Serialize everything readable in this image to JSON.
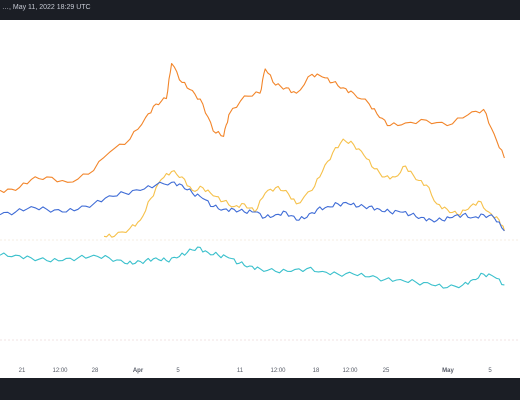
{
  "header": {
    "title": "…, May 11, 2022 18:29 UTC"
  },
  "chart_data": {
    "type": "line",
    "title": "",
    "xlabel": "",
    "ylabel": "",
    "x_ticks": [
      "21",
      "12:00",
      "28",
      "Apr",
      "5",
      "11",
      "12:00",
      "18",
      "12:00",
      "25",
      "May",
      "5"
    ],
    "ylim": [
      0,
      100
    ],
    "grid": false,
    "series": [
      {
        "color": "#f2852a",
        "points": [
          [
            0,
            48
          ],
          [
            3,
            48
          ],
          [
            6,
            52
          ],
          [
            9,
            53
          ],
          [
            13,
            51
          ],
          [
            17,
            54
          ],
          [
            21,
            62
          ],
          [
            25,
            67
          ],
          [
            28,
            75
          ],
          [
            30,
            80
          ],
          [
            32,
            82
          ],
          [
            33,
            95
          ],
          [
            35,
            88
          ],
          [
            37,
            85
          ],
          [
            39,
            80
          ],
          [
            41,
            70
          ],
          [
            43,
            68
          ],
          [
            44,
            76
          ],
          [
            47,
            83
          ],
          [
            50,
            84
          ],
          [
            51,
            93
          ],
          [
            53,
            87
          ],
          [
            55,
            86
          ],
          [
            57,
            84
          ],
          [
            60,
            91
          ],
          [
            62,
            90
          ],
          [
            64,
            88
          ],
          [
            66,
            86
          ],
          [
            68,
            84
          ],
          [
            71,
            80
          ],
          [
            73,
            75
          ],
          [
            75,
            72
          ],
          [
            78,
            73
          ],
          [
            82,
            74
          ],
          [
            86,
            72
          ],
          [
            90,
            76
          ],
          [
            93,
            78
          ],
          [
            95,
            69
          ],
          [
            97,
            60
          ]
        ]
      },
      {
        "color": "#f6c14b",
        "points": [
          [
            20,
            31
          ],
          [
            22,
            31
          ],
          [
            25,
            34
          ],
          [
            27,
            37
          ],
          [
            29,
            45
          ],
          [
            31,
            52
          ],
          [
            33,
            55
          ],
          [
            35,
            53
          ],
          [
            37,
            48
          ],
          [
            39,
            49
          ],
          [
            41,
            46
          ],
          [
            43,
            44
          ],
          [
            45,
            42
          ],
          [
            47,
            43
          ],
          [
            49,
            40
          ],
          [
            51,
            47
          ],
          [
            53,
            49
          ],
          [
            55,
            48
          ],
          [
            57,
            43
          ],
          [
            60,
            48
          ],
          [
            62,
            55
          ],
          [
            64,
            62
          ],
          [
            66,
            67
          ],
          [
            68,
            65
          ],
          [
            70,
            61
          ],
          [
            72,
            56
          ],
          [
            74,
            53
          ],
          [
            76,
            53
          ],
          [
            78,
            57
          ],
          [
            80,
            52
          ],
          [
            82,
            50
          ],
          [
            84,
            43
          ],
          [
            86,
            41
          ],
          [
            88,
            39
          ],
          [
            90,
            41
          ],
          [
            92,
            44
          ],
          [
            94,
            40
          ],
          [
            96,
            37
          ],
          [
            97,
            33
          ]
        ]
      },
      {
        "color": "#3f6cd6",
        "points": [
          [
            0,
            39
          ],
          [
            3,
            40
          ],
          [
            6,
            42
          ],
          [
            9,
            41
          ],
          [
            12,
            40
          ],
          [
            15,
            41
          ],
          [
            18,
            43
          ],
          [
            21,
            46
          ],
          [
            24,
            47
          ],
          [
            27,
            48
          ],
          [
            30,
            50
          ],
          [
            33,
            51
          ],
          [
            35,
            50
          ],
          [
            37,
            47
          ],
          [
            39,
            45
          ],
          [
            41,
            42
          ],
          [
            43,
            41
          ],
          [
            45,
            41
          ],
          [
            47,
            40
          ],
          [
            49,
            40
          ],
          [
            51,
            38
          ],
          [
            53,
            39
          ],
          [
            55,
            40
          ],
          [
            57,
            37
          ],
          [
            59,
            38
          ],
          [
            61,
            41
          ],
          [
            63,
            42
          ],
          [
            65,
            43
          ],
          [
            67,
            43
          ],
          [
            69,
            42
          ],
          [
            71,
            42
          ],
          [
            73,
            41
          ],
          [
            75,
            40
          ],
          [
            77,
            40
          ],
          [
            79,
            39
          ],
          [
            81,
            38
          ],
          [
            83,
            37
          ],
          [
            85,
            37
          ],
          [
            87,
            38
          ],
          [
            89,
            39
          ],
          [
            91,
            38
          ],
          [
            93,
            39
          ],
          [
            95,
            38
          ],
          [
            97,
            33
          ]
        ]
      },
      {
        "color": "#3ac0cc",
        "points": [
          [
            0,
            24
          ],
          [
            3,
            24
          ],
          [
            6,
            23
          ],
          [
            9,
            22
          ],
          [
            12,
            22
          ],
          [
            15,
            23
          ],
          [
            18,
            24
          ],
          [
            21,
            23
          ],
          [
            24,
            21
          ],
          [
            26,
            21
          ],
          [
            28,
            22
          ],
          [
            30,
            23
          ],
          [
            32,
            22
          ],
          [
            34,
            23
          ],
          [
            36,
            25
          ],
          [
            38,
            27
          ],
          [
            40,
            25
          ],
          [
            42,
            24
          ],
          [
            44,
            23
          ],
          [
            46,
            21
          ],
          [
            48,
            20
          ],
          [
            50,
            19
          ],
          [
            53,
            18
          ],
          [
            56,
            18
          ],
          [
            59,
            19
          ],
          [
            62,
            18
          ],
          [
            65,
            17
          ],
          [
            68,
            17
          ],
          [
            71,
            16
          ],
          [
            74,
            15
          ],
          [
            77,
            15
          ],
          [
            80,
            14
          ],
          [
            83,
            13
          ],
          [
            86,
            12
          ],
          [
            89,
            13
          ],
          [
            91,
            15
          ],
          [
            93,
            17
          ],
          [
            95,
            16
          ],
          [
            97,
            13
          ]
        ]
      }
    ]
  }
}
